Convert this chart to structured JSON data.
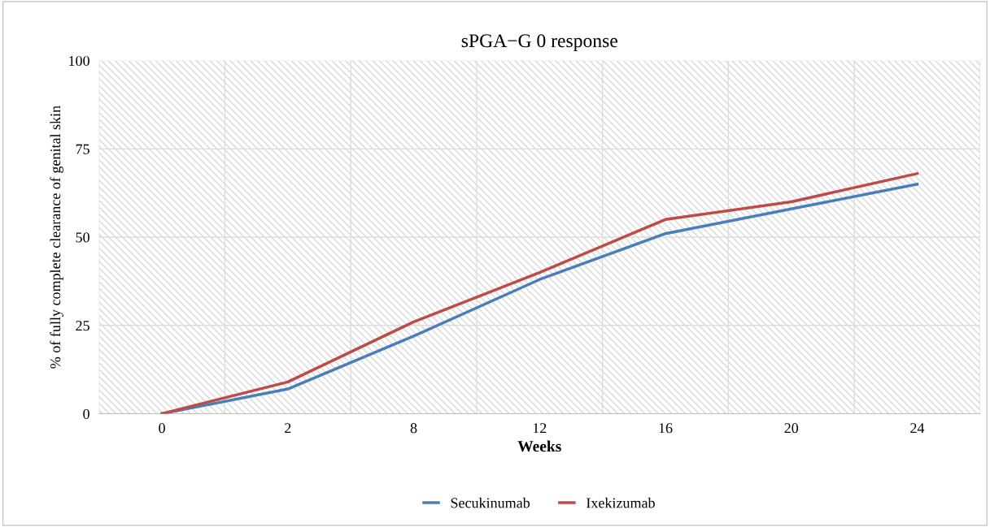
{
  "chart_data": {
    "type": "line",
    "title": "sPGA−G 0 response",
    "xlabel": "Weeks",
    "ylabel": "% of fully complete clearance of genital skin",
    "categories": [
      "0",
      "2",
      "8",
      "12",
      "16",
      "20",
      "24"
    ],
    "series": [
      {
        "name": "Secukinumab",
        "color": "#4a7ebb",
        "values": [
          0,
          7,
          22,
          38,
          51,
          58,
          65
        ]
      },
      {
        "name": "Ixekizumab",
        "color": "#be4b48",
        "values": [
          0,
          9,
          26,
          40,
          55,
          60,
          68
        ]
      }
    ],
    "ylim": [
      0,
      100
    ],
    "yticks": [
      0,
      25,
      50,
      75,
      100
    ],
    "grid": true,
    "legend": "bottom",
    "marker": "none",
    "line_style": "solid"
  }
}
